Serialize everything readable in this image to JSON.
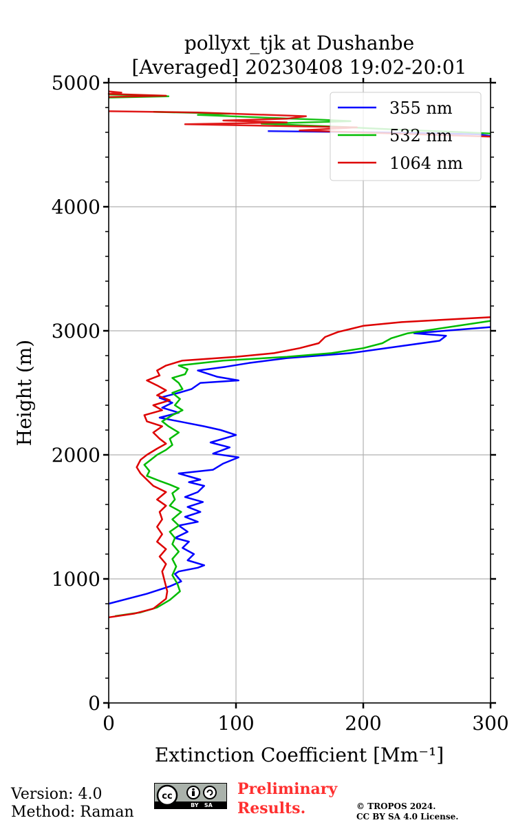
{
  "chart_data": {
    "type": "line",
    "title": [
      "pollyxt_tjk at Dushanbe",
      "[Averaged] 20230408 19:02-20:01"
    ],
    "xlabel": "Extinction Coefficient [Mm⁻¹]",
    "ylabel": "Height (m)",
    "xlim": [
      0,
      300
    ],
    "ylim": [
      0,
      5000
    ],
    "xticks": [
      0,
      100,
      200,
      300
    ],
    "yticks": [
      0,
      1000,
      2000,
      3000,
      4000,
      5000
    ],
    "xtick_labels": [
      "0",
      "100",
      "200",
      "300"
    ],
    "ytick_labels": [
      "0",
      "1000",
      "2000",
      "3000",
      "4000",
      "5000"
    ],
    "grid": true,
    "legend_position": "top-right",
    "series": [
      {
        "name": "355 nm",
        "color": "#0000ff",
        "points": [
          [
            0,
            800
          ],
          [
            30,
            880
          ],
          [
            48,
            940
          ],
          [
            57,
            980
          ],
          [
            52,
            1040
          ],
          [
            55,
            1060
          ],
          [
            70,
            1090
          ],
          [
            75,
            1110
          ],
          [
            62,
            1150
          ],
          [
            67,
            1200
          ],
          [
            58,
            1250
          ],
          [
            63,
            1300
          ],
          [
            52,
            1330
          ],
          [
            62,
            1380
          ],
          [
            55,
            1430
          ],
          [
            70,
            1460
          ],
          [
            60,
            1500
          ],
          [
            72,
            1540
          ],
          [
            62,
            1580
          ],
          [
            74,
            1620
          ],
          [
            60,
            1660
          ],
          [
            70,
            1700
          ],
          [
            75,
            1750
          ],
          [
            63,
            1780
          ],
          [
            72,
            1800
          ],
          [
            55,
            1850
          ],
          [
            82,
            1880
          ],
          [
            90,
            1930
          ],
          [
            102,
            1980
          ],
          [
            82,
            2010
          ],
          [
            95,
            2060
          ],
          [
            80,
            2100
          ],
          [
            100,
            2160
          ],
          [
            88,
            2200
          ],
          [
            75,
            2230
          ],
          [
            60,
            2260
          ],
          [
            40,
            2300
          ],
          [
            55,
            2340
          ],
          [
            42,
            2380
          ],
          [
            50,
            2420
          ],
          [
            40,
            2460
          ],
          [
            55,
            2500
          ],
          [
            65,
            2530
          ],
          [
            72,
            2580
          ],
          [
            102,
            2600
          ],
          [
            85,
            2630
          ],
          [
            70,
            2680
          ],
          [
            92,
            2710
          ],
          [
            110,
            2740
          ],
          [
            140,
            2780
          ],
          [
            190,
            2820
          ],
          [
            225,
            2870
          ],
          [
            260,
            2920
          ],
          [
            265,
            2960
          ],
          [
            240,
            2980
          ],
          [
            300,
            3030
          ]
        ]
      },
      {
        "name": "532 nm",
        "color": "#00bb00",
        "points": [
          [
            5,
            700
          ],
          [
            25,
            730
          ],
          [
            38,
            770
          ],
          [
            48,
            830
          ],
          [
            56,
            900
          ],
          [
            54,
            960
          ],
          [
            50,
            1030
          ],
          [
            53,
            1100
          ],
          [
            50,
            1160
          ],
          [
            55,
            1220
          ],
          [
            50,
            1280
          ],
          [
            52,
            1330
          ],
          [
            48,
            1380
          ],
          [
            55,
            1430
          ],
          [
            50,
            1480
          ],
          [
            57,
            1540
          ],
          [
            48,
            1590
          ],
          [
            52,
            1640
          ],
          [
            50,
            1690
          ],
          [
            55,
            1730
          ],
          [
            48,
            1760
          ],
          [
            40,
            1790
          ],
          [
            30,
            1830
          ],
          [
            32,
            1870
          ],
          [
            28,
            1920
          ],
          [
            33,
            1960
          ],
          [
            38,
            2000
          ],
          [
            45,
            2040
          ],
          [
            50,
            2080
          ],
          [
            48,
            2130
          ],
          [
            55,
            2180
          ],
          [
            47,
            2230
          ],
          [
            42,
            2270
          ],
          [
            50,
            2320
          ],
          [
            58,
            2360
          ],
          [
            52,
            2400
          ],
          [
            56,
            2450
          ],
          [
            50,
            2500
          ],
          [
            58,
            2530
          ],
          [
            55,
            2580
          ],
          [
            50,
            2620
          ],
          [
            60,
            2650
          ],
          [
            62,
            2690
          ],
          [
            55,
            2720
          ],
          [
            90,
            2760
          ],
          [
            140,
            2790
          ],
          [
            175,
            2820
          ],
          [
            200,
            2860
          ],
          [
            215,
            2900
          ],
          [
            222,
            2940
          ],
          [
            235,
            2980
          ],
          [
            300,
            3080
          ]
        ]
      },
      {
        "name": "1064 nm",
        "color": "#dd0000",
        "points": [
          [
            0,
            690
          ],
          [
            20,
            720
          ],
          [
            35,
            760
          ],
          [
            45,
            840
          ],
          [
            46,
            900
          ],
          [
            44,
            980
          ],
          [
            42,
            1060
          ],
          [
            45,
            1120
          ],
          [
            40,
            1180
          ],
          [
            45,
            1240
          ],
          [
            38,
            1300
          ],
          [
            42,
            1360
          ],
          [
            38,
            1420
          ],
          [
            42,
            1480
          ],
          [
            40,
            1540
          ],
          [
            45,
            1590
          ],
          [
            38,
            1640
          ],
          [
            45,
            1700
          ],
          [
            35,
            1750
          ],
          [
            30,
            1800
          ],
          [
            25,
            1850
          ],
          [
            22,
            1900
          ],
          [
            25,
            1960
          ],
          [
            30,
            2000
          ],
          [
            38,
            2050
          ],
          [
            45,
            2090
          ],
          [
            40,
            2130
          ],
          [
            35,
            2180
          ],
          [
            42,
            2230
          ],
          [
            30,
            2270
          ],
          [
            28,
            2320
          ],
          [
            42,
            2360
          ],
          [
            35,
            2400
          ],
          [
            48,
            2440
          ],
          [
            38,
            2480
          ],
          [
            45,
            2520
          ],
          [
            38,
            2560
          ],
          [
            30,
            2600
          ],
          [
            40,
            2640
          ],
          [
            38,
            2680
          ],
          [
            45,
            2720
          ],
          [
            58,
            2760
          ],
          [
            100,
            2790
          ],
          [
            130,
            2820
          ],
          [
            150,
            2860
          ],
          [
            165,
            2900
          ],
          [
            170,
            2950
          ],
          [
            180,
            2990
          ],
          [
            200,
            3040
          ],
          [
            230,
            3070
          ],
          [
            300,
            3110
          ]
        ]
      }
    ],
    "high_altitude_segments": [
      {
        "color": "#0000ff",
        "points": [
          [
            125,
            4610
          ],
          [
            210,
            4600
          ],
          [
            290,
            4585
          ],
          [
            300,
            4570
          ]
        ]
      },
      {
        "color": "#00bb00",
        "points": [
          [
            0,
            4905
          ],
          [
            40,
            4895
          ],
          [
            47,
            4890
          ],
          [
            0,
            4880
          ]
        ]
      },
      {
        "color": "#00bb00",
        "points": [
          [
            35,
            4765
          ],
          [
            95,
            4750
          ],
          [
            70,
            4740
          ],
          [
            170,
            4700
          ],
          [
            190,
            4690
          ],
          [
            120,
            4670
          ],
          [
            180,
            4645
          ],
          [
            230,
            4620
          ],
          [
            280,
            4600
          ],
          [
            300,
            4590
          ]
        ]
      },
      {
        "color": "#dd0000",
        "points": [
          [
            0,
            4930
          ],
          [
            10,
            4920
          ],
          [
            0,
            4910
          ],
          [
            45,
            4895
          ],
          [
            0,
            4885
          ]
        ]
      },
      {
        "color": "#dd0000",
        "points": [
          [
            0,
            4770
          ],
          [
            70,
            4760
          ],
          [
            155,
            4730
          ],
          [
            140,
            4710
          ],
          [
            90,
            4695
          ],
          [
            140,
            4680
          ],
          [
            60,
            4665
          ],
          [
            195,
            4640
          ],
          [
            150,
            4615
          ],
          [
            300,
            4565
          ]
        ]
      }
    ]
  },
  "footer": {
    "version": "Version: 4.0",
    "method": "Method: Raman",
    "preliminary_line1": "Preliminary",
    "preliminary_line2": "Results.",
    "copyright_line1": "© TROPOS 2024.",
    "copyright_line2": "CC BY SA 4.0 License.",
    "cc_badge_text": "BY   SA"
  }
}
